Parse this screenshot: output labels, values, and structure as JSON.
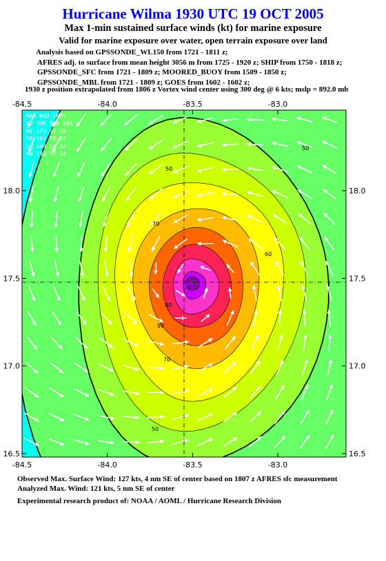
{
  "header": {
    "title": "Hurricane Wilma 1930 UTC 19 OCT 2005",
    "subtitle": "Max 1-min sustained surface winds (kt) for marine exposure",
    "valid": "Valid for marine exposure over water, open terrain exposure over land",
    "analysis_lines": [
      "Analysis based on  GPSSONDE_WL150 from 1721 - 1811 z;",
      "AFRES adj. to surface from mean height 3056 m from 1725 - 1920 z;  SHIP from 1750 - 1818 z;",
      "GPSSONDE_SFC from 1721 - 1809 z;  MOORED_BUOY from 1509 - 1850 z;",
      "GPSSONDE_MBL from 1721 - 1809 z;  GOES from 1602 - 1602 z;"
    ],
    "position_line": "1930 z position extrapolated from 1806 z Vortex wind center using 300 deg @ 6 kts; mslp = 892.0 mb"
  },
  "legend": {
    "title": "MAX RAD (NM)",
    "header": "QD  34K  50K  64K",
    "rows": [
      "NE  173   62   28",
      "SE  164   58   31",
      "SW  194   54   32",
      "NW  192   37   24"
    ]
  },
  "footer": {
    "observed": "Observed Max. Surface Wind: 127 kts, 4 nm SE of center based on 1807 z AFRES sfc measurement",
    "analyzed": "Analyzed Max. Wind: 121 kts, 5 nm SE of center",
    "credit": "Experimental research product of:  NOAA / AOML / Hurricane Research Division"
  },
  "chart_data": {
    "type": "contour",
    "x_axis": {
      "ticks": [
        -84.5,
        -84.0,
        -83.5,
        -83.0
      ],
      "tick_labels": [
        "-84.5",
        "-84.0",
        "-83.5",
        "-83.0"
      ],
      "range": [
        -84.5,
        -82.6
      ]
    },
    "y_axis": {
      "ticks": [
        16.5,
        17.0,
        17.5,
        18.0
      ],
      "tick_labels": [
        "16.5",
        "17.0",
        "17.5",
        "18.0"
      ],
      "range": [
        16.48,
        18.46
      ]
    },
    "center": {
      "lon": -83.5,
      "lat": 17.47
    },
    "contour_labels": [
      "50",
      "50",
      "50",
      "60",
      "70",
      "70",
      "80",
      "90"
    ],
    "levels": [
      {
        "kt": 34,
        "color": "#66ff66",
        "rx": [
          0.55,
          0.74
        ],
        "ry": [
          0.79,
          0.87
        ]
      },
      {
        "kt": 50,
        "color": "#99ff33",
        "rx": [
          0.36,
          0.41
        ],
        "ry": [
          0.47,
          0.53
        ]
      },
      {
        "kt": 60,
        "color": "#ccff00",
        "rx": [
          0.3,
          0.34
        ],
        "ry": [
          0.38,
          0.42
        ]
      },
      {
        "kt": 70,
        "color": "#ffff00",
        "rx": [
          0.24,
          0.28
        ],
        "ry": [
          0.3,
          0.33
        ]
      },
      {
        "kt": 80,
        "color": "#ffbb00",
        "rx": [
          0.18,
          0.21
        ],
        "ry": [
          0.22,
          0.24
        ]
      },
      {
        "kt": 90,
        "color": "#ff6600",
        "rx": [
          0.13,
          0.16
        ],
        "ry": [
          0.16,
          0.18
        ]
      },
      {
        "kt": 100,
        "color": "#ff2255",
        "rx": [
          0.09,
          0.12
        ],
        "ry": [
          0.11,
          0.13
        ]
      },
      {
        "kt": 110,
        "color": "#ff33cc",
        "rx": [
          0.06,
          0.08
        ],
        "ry": [
          0.07,
          0.09
        ]
      },
      {
        "kt": 120,
        "color": "#cc00ff",
        "rx": [
          0.03,
          0.04
        ],
        "ry": [
          0.035,
          0.045
        ]
      }
    ],
    "background_color": "#00ffee"
  }
}
